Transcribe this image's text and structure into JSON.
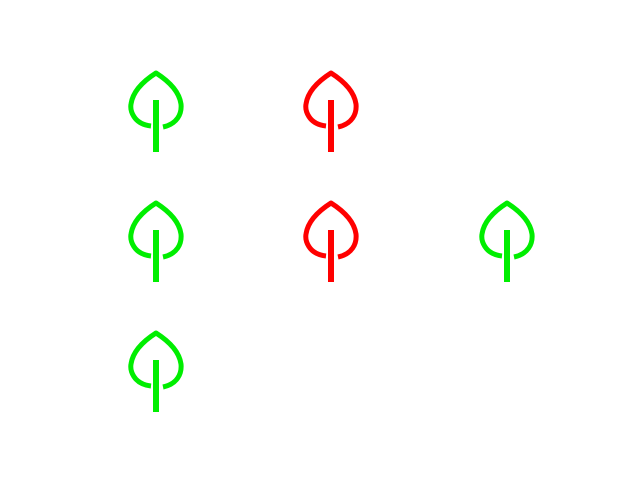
{
  "colors": {
    "background": "#ffffff",
    "green": "#00ee00",
    "red": "#ff0000"
  },
  "icons": [
    {
      "name": "leaf-icon",
      "row": 0,
      "col": 0,
      "color": "#00ee00"
    },
    {
      "name": "leaf-icon",
      "row": 0,
      "col": 1,
      "color": "#ff0000"
    },
    {
      "name": "leaf-icon",
      "row": 1,
      "col": 0,
      "color": "#00ee00"
    },
    {
      "name": "leaf-icon",
      "row": 1,
      "col": 1,
      "color": "#ff0000"
    },
    {
      "name": "leaf-icon",
      "row": 1,
      "col": 2,
      "color": "#00ee00"
    },
    {
      "name": "leaf-icon",
      "row": 2,
      "col": 0,
      "color": "#00ee00"
    }
  ]
}
